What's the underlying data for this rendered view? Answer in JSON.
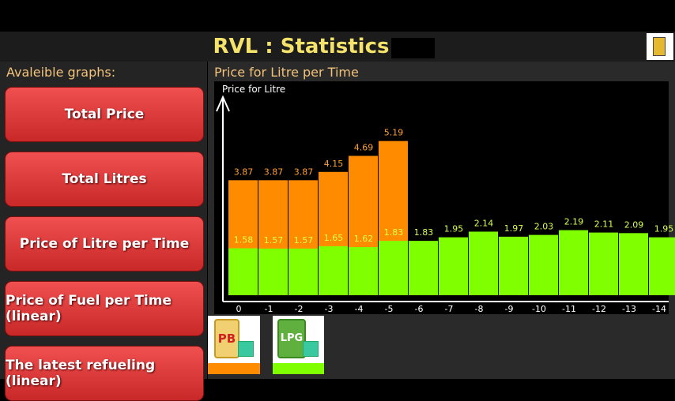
{
  "header": {
    "title": "RVL : Statistics"
  },
  "sidebar": {
    "heading": "Avaleible graphs:",
    "buttons": [
      "Total Price",
      "Total Litres",
      "Price of Litre per Time",
      "Price of Fuel per Time (linear)",
      "The latest refueling (linear)"
    ]
  },
  "panel": {
    "title": "Price for Litre per Time"
  },
  "chart_data": {
    "type": "bar",
    "y_label": "Price for Litre",
    "categories": [
      "0",
      "-1",
      "-2",
      "-3",
      "-4",
      "-5",
      "-6",
      "-7",
      "-8",
      "-9",
      "-10",
      "-11",
      "-12",
      "-13",
      "-14"
    ],
    "series": [
      {
        "name": "PB",
        "color": "#ff8c00",
        "label_color": "#ffa030",
        "values": [
          3.87,
          3.87,
          3.87,
          4.15,
          4.69,
          5.19,
          null,
          null,
          null,
          null,
          null,
          null,
          null,
          null,
          null
        ]
      },
      {
        "name": "LPG",
        "color": "#80ff00",
        "label_color": "#d8ff50",
        "values": [
          1.58,
          1.57,
          1.57,
          1.65,
          1.62,
          1.83,
          1.83,
          1.95,
          2.14,
          1.97,
          2.03,
          2.19,
          2.11,
          2.09,
          1.95
        ]
      }
    ],
    "ylim": [
      0,
      7.2
    ]
  }
}
